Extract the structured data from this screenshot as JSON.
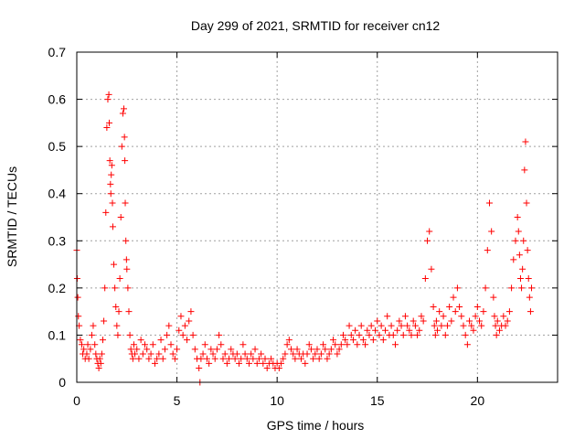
{
  "chart_data": {
    "type": "scatter",
    "title": "Day 299 of 2021, SRMTID for receiver cn12",
    "xlabel": "GPS time / hours",
    "ylabel": "SRMTID / TECUs",
    "xlim": [
      0,
      24
    ],
    "ylim": [
      0,
      0.7
    ],
    "xticks": [
      0,
      5,
      10,
      15,
      20
    ],
    "yticks": [
      0,
      0.1,
      0.2,
      0.3,
      0.4,
      0.5,
      0.6,
      0.7
    ],
    "xtick_labels": [
      "0",
      "5",
      "10",
      "15",
      "20"
    ],
    "ytick_labels": [
      "0",
      "0.1",
      "0.2",
      "0.3",
      "0.4",
      "0.5",
      "0.6",
      "0.7"
    ],
    "grid": true,
    "marker": "+",
    "color": "#ff0000",
    "series": [
      {
        "name": "SRMTID",
        "x": [
          0.0,
          0.02,
          0.05,
          0.08,
          0.12,
          0.18,
          0.25,
          0.3,
          0.35,
          0.42,
          0.5,
          0.55,
          0.6,
          0.68,
          0.75,
          0.82,
          0.9,
          0.95,
          1.0,
          1.05,
          1.1,
          1.15,
          1.2,
          1.25,
          1.3,
          1.35,
          1.4,
          1.45,
          1.5,
          1.55,
          1.6,
          1.62,
          1.65,
          1.68,
          1.7,
          1.72,
          1.75,
          1.78,
          1.8,
          1.85,
          1.9,
          1.95,
          2.0,
          2.05,
          2.1,
          2.15,
          2.2,
          2.25,
          2.3,
          2.35,
          2.38,
          2.4,
          2.42,
          2.45,
          2.48,
          2.5,
          2.55,
          2.6,
          2.65,
          2.7,
          2.75,
          2.8,
          2.85,
          2.9,
          3.0,
          3.1,
          3.2,
          3.3,
          3.4,
          3.5,
          3.6,
          3.7,
          3.8,
          3.9,
          4.0,
          4.1,
          4.2,
          4.3,
          4.4,
          4.5,
          4.6,
          4.7,
          4.8,
          4.9,
          5.0,
          5.1,
          5.2,
          5.3,
          5.4,
          5.5,
          5.6,
          5.7,
          5.8,
          5.9,
          6.0,
          6.1,
          6.15,
          6.2,
          6.3,
          6.4,
          6.5,
          6.6,
          6.7,
          6.8,
          6.9,
          7.0,
          7.1,
          7.2,
          7.3,
          7.4,
          7.5,
          7.6,
          7.7,
          7.8,
          7.9,
          8.0,
          8.1,
          8.2,
          8.3,
          8.4,
          8.5,
          8.6,
          8.7,
          8.8,
          8.9,
          9.0,
          9.1,
          9.2,
          9.3,
          9.4,
          9.5,
          9.6,
          9.7,
          9.8,
          9.9,
          10.0,
          10.1,
          10.2,
          10.3,
          10.4,
          10.5,
          10.6,
          10.7,
          10.8,
          10.9,
          11.0,
          11.1,
          11.2,
          11.3,
          11.4,
          11.5,
          11.6,
          11.7,
          11.8,
          11.9,
          12.0,
          12.1,
          12.2,
          12.3,
          12.4,
          12.5,
          12.6,
          12.7,
          12.8,
          12.9,
          13.0,
          13.1,
          13.2,
          13.3,
          13.4,
          13.5,
          13.6,
          13.7,
          13.8,
          13.9,
          14.0,
          14.1,
          14.2,
          14.3,
          14.4,
          14.5,
          14.6,
          14.7,
          14.8,
          14.9,
          15.0,
          15.1,
          15.2,
          15.3,
          15.4,
          15.5,
          15.6,
          15.7,
          15.8,
          15.9,
          16.0,
          16.1,
          16.2,
          16.3,
          16.4,
          16.5,
          16.6,
          16.7,
          16.8,
          16.9,
          17.0,
          17.1,
          17.2,
          17.3,
          17.4,
          17.5,
          17.6,
          17.7,
          17.8,
          17.85,
          17.9,
          17.95,
          18.0,
          18.1,
          18.2,
          18.3,
          18.4,
          18.5,
          18.6,
          18.7,
          18.8,
          18.9,
          19.0,
          19.1,
          19.2,
          19.3,
          19.4,
          19.5,
          19.6,
          19.7,
          19.8,
          19.9,
          20.0,
          20.1,
          20.2,
          20.3,
          20.4,
          20.5,
          20.6,
          20.7,
          20.8,
          20.85,
          20.9,
          20.95,
          21.0,
          21.1,
          21.2,
          21.3,
          21.4,
          21.5,
          21.6,
          21.7,
          21.8,
          21.9,
          22.0,
          22.05,
          22.1,
          22.15,
          22.2,
          22.25,
          22.3,
          22.35,
          22.4,
          22.45,
          22.5,
          22.55,
          22.6,
          22.65,
          22.7
        ],
        "y": [
          0.28,
          0.22,
          0.18,
          0.14,
          0.12,
          0.09,
          0.08,
          0.06,
          0.07,
          0.05,
          0.06,
          0.08,
          0.05,
          0.07,
          0.1,
          0.12,
          0.08,
          0.06,
          0.05,
          0.04,
          0.03,
          0.05,
          0.04,
          0.06,
          0.09,
          0.13,
          0.2,
          0.36,
          0.54,
          0.6,
          0.61,
          0.55,
          0.47,
          0.42,
          0.4,
          0.44,
          0.46,
          0.38,
          0.33,
          0.25,
          0.2,
          0.16,
          0.12,
          0.1,
          0.15,
          0.22,
          0.35,
          0.5,
          0.57,
          0.58,
          0.52,
          0.47,
          0.38,
          0.3,
          0.26,
          0.24,
          0.2,
          0.15,
          0.1,
          0.07,
          0.06,
          0.05,
          0.08,
          0.06,
          0.07,
          0.05,
          0.09,
          0.06,
          0.08,
          0.07,
          0.05,
          0.06,
          0.08,
          0.04,
          0.05,
          0.06,
          0.09,
          0.05,
          0.07,
          0.1,
          0.12,
          0.08,
          0.06,
          0.05,
          0.07,
          0.11,
          0.14,
          0.1,
          0.12,
          0.09,
          0.13,
          0.15,
          0.1,
          0.07,
          0.05,
          0.03,
          0.0,
          0.05,
          0.06,
          0.08,
          0.05,
          0.04,
          0.07,
          0.06,
          0.05,
          0.07,
          0.1,
          0.08,
          0.05,
          0.06,
          0.04,
          0.05,
          0.07,
          0.06,
          0.05,
          0.06,
          0.04,
          0.05,
          0.08,
          0.06,
          0.05,
          0.04,
          0.06,
          0.05,
          0.07,
          0.04,
          0.05,
          0.06,
          0.04,
          0.05,
          0.03,
          0.04,
          0.05,
          0.04,
          0.03,
          0.04,
          0.03,
          0.04,
          0.05,
          0.06,
          0.08,
          0.09,
          0.07,
          0.06,
          0.05,
          0.07,
          0.06,
          0.05,
          0.06,
          0.04,
          0.06,
          0.08,
          0.07,
          0.05,
          0.06,
          0.07,
          0.05,
          0.06,
          0.08,
          0.07,
          0.05,
          0.06,
          0.07,
          0.09,
          0.08,
          0.06,
          0.07,
          0.08,
          0.1,
          0.09,
          0.08,
          0.12,
          0.1,
          0.09,
          0.11,
          0.08,
          0.1,
          0.12,
          0.09,
          0.08,
          0.11,
          0.1,
          0.12,
          0.09,
          0.11,
          0.13,
          0.1,
          0.12,
          0.09,
          0.11,
          0.14,
          0.1,
          0.12,
          0.1,
          0.08,
          0.11,
          0.13,
          0.12,
          0.1,
          0.14,
          0.12,
          0.11,
          0.1,
          0.13,
          0.12,
          0.1,
          0.11,
          0.14,
          0.13,
          0.22,
          0.3,
          0.32,
          0.24,
          0.16,
          0.12,
          0.1,
          0.13,
          0.11,
          0.15,
          0.12,
          0.14,
          0.1,
          0.12,
          0.16,
          0.13,
          0.18,
          0.15,
          0.2,
          0.16,
          0.14,
          0.12,
          0.1,
          0.08,
          0.13,
          0.12,
          0.11,
          0.14,
          0.16,
          0.13,
          0.12,
          0.15,
          0.2,
          0.28,
          0.38,
          0.32,
          0.18,
          0.14,
          0.12,
          0.1,
          0.13,
          0.11,
          0.12,
          0.14,
          0.12,
          0.13,
          0.15,
          0.2,
          0.26,
          0.3,
          0.35,
          0.32,
          0.27,
          0.22,
          0.2,
          0.24,
          0.3,
          0.45,
          0.51,
          0.38,
          0.28,
          0.22,
          0.18,
          0.15,
          0.2
        ]
      }
    ]
  }
}
